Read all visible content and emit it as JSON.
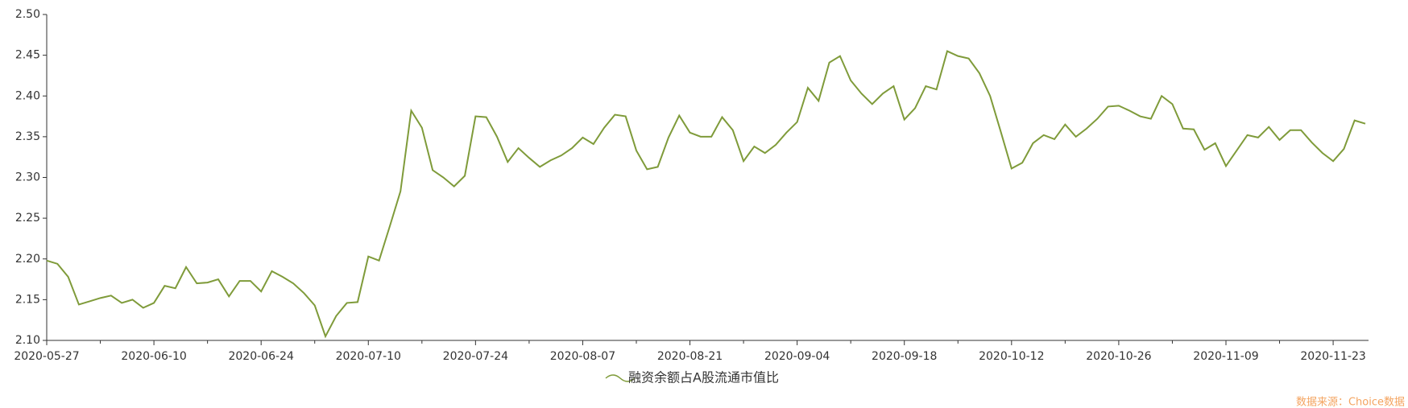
{
  "chart_data": {
    "type": "line",
    "categories": [
      "2020-05-27",
      null,
      null,
      null,
      null,
      null,
      null,
      null,
      null,
      null,
      "2020-06-10",
      null,
      null,
      null,
      null,
      null,
      null,
      null,
      null,
      null,
      "2020-06-24",
      null,
      null,
      null,
      null,
      null,
      null,
      null,
      null,
      null,
      "2020-07-10",
      null,
      null,
      null,
      null,
      null,
      null,
      null,
      null,
      null,
      "2020-07-24",
      null,
      null,
      null,
      null,
      null,
      null,
      null,
      null,
      null,
      "2020-08-07",
      null,
      null,
      null,
      null,
      null,
      null,
      null,
      null,
      null,
      "2020-08-21",
      null,
      null,
      null,
      null,
      null,
      null,
      null,
      null,
      null,
      "2020-09-04",
      null,
      null,
      null,
      null,
      null,
      null,
      null,
      null,
      null,
      "2020-09-18",
      null,
      null,
      null,
      null,
      null,
      null,
      null,
      null,
      null,
      "2020-10-12",
      null,
      null,
      null,
      null,
      null,
      null,
      null,
      null,
      null,
      "2020-10-26",
      null,
      null,
      null,
      null,
      null,
      null,
      null,
      null,
      null,
      "2020-11-09",
      null,
      null,
      null,
      null,
      null,
      null,
      null,
      null,
      null,
      "2020-11-23",
      null,
      null,
      null
    ],
    "series": [
      {
        "name": "融资余额占A股流通市值比",
        "color": "#7f9b3a",
        "values": [
          2.198,
          2.194,
          2.178,
          2.144,
          2.148,
          2.152,
          2.155,
          2.146,
          2.15,
          2.14,
          2.146,
          2.167,
          2.164,
          2.19,
          2.17,
          2.171,
          2.175,
          2.154,
          2.173,
          2.173,
          2.16,
          2.185,
          2.178,
          2.17,
          2.158,
          2.143,
          2.105,
          2.13,
          2.146,
          2.147,
          2.203,
          2.198,
          2.24,
          2.283,
          2.382,
          2.361,
          2.309,
          2.3,
          2.289,
          2.302,
          2.375,
          2.374,
          2.35,
          2.319,
          2.336,
          2.324,
          2.313,
          2.321,
          2.327,
          2.336,
          2.349,
          2.341,
          2.361,
          2.377,
          2.375,
          2.333,
          2.31,
          2.313,
          2.349,
          2.376,
          2.355,
          2.35,
          2.35,
          2.374,
          2.358,
          2.32,
          2.338,
          2.33,
          2.34,
          2.355,
          2.368,
          2.41,
          2.394,
          2.441,
          2.449,
          2.419,
          2.403,
          2.39,
          2.403,
          2.412,
          2.371,
          2.385,
          2.412,
          2.408,
          2.455,
          2.449,
          2.446,
          2.428,
          2.4,
          2.356,
          2.311,
          2.318,
          2.342,
          2.352,
          2.347,
          2.365,
          2.35,
          2.36,
          2.372,
          2.387,
          2.388,
          2.382,
          2.375,
          2.372,
          2.4,
          2.39,
          2.36,
          2.359,
          2.334,
          2.342,
          2.314,
          2.333,
          2.352,
          2.349,
          2.362,
          2.346,
          2.358,
          2.358,
          2.343,
          2.33,
          2.32,
          2.335,
          2.37,
          2.366
        ]
      }
    ],
    "ylim": [
      2.1,
      2.5
    ],
    "yticks": [
      {
        "value": 2.1,
        "label": "2.10"
      },
      {
        "value": 2.15,
        "label": "2.15"
      },
      {
        "value": 2.2,
        "label": "2.20"
      },
      {
        "value": 2.25,
        "label": "2.25"
      },
      {
        "value": 2.3,
        "label": "2.30"
      },
      {
        "value": 2.35,
        "label": "2.35"
      },
      {
        "value": 2.4,
        "label": "2.40"
      },
      {
        "value": 2.45,
        "label": "2.45"
      },
      {
        "value": 2.5,
        "label": "2.50"
      }
    ],
    "grid": false,
    "source": "数据来源：Choice数据"
  }
}
